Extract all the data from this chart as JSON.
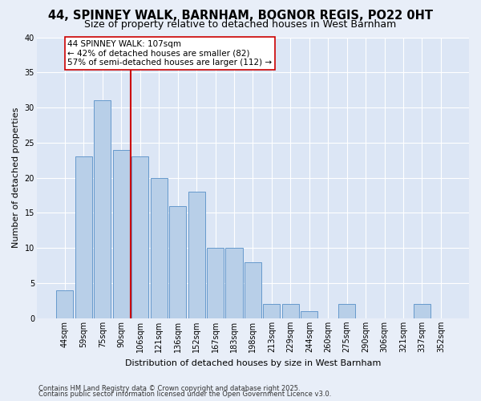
{
  "title1": "44, SPINNEY WALK, BARNHAM, BOGNOR REGIS, PO22 0HT",
  "title2": "Size of property relative to detached houses in West Barnham",
  "xlabel": "Distribution of detached houses by size in West Barnham",
  "ylabel": "Number of detached properties",
  "categories": [
    "44sqm",
    "59sqm",
    "75sqm",
    "90sqm",
    "106sqm",
    "121sqm",
    "136sqm",
    "152sqm",
    "167sqm",
    "183sqm",
    "198sqm",
    "213sqm",
    "229sqm",
    "244sqm",
    "260sqm",
    "275sqm",
    "290sqm",
    "306sqm",
    "321sqm",
    "337sqm",
    "352sqm"
  ],
  "values": [
    4,
    23,
    31,
    24,
    23,
    20,
    16,
    18,
    10,
    10,
    8,
    2,
    2,
    1,
    0,
    2,
    0,
    0,
    0,
    2,
    0
  ],
  "bar_color": "#b8cfe8",
  "bar_edge_color": "#6699cc",
  "vline_color": "#cc0000",
  "vline_x_idx": 4,
  "annotation_text": "44 SPINNEY WALK: 107sqm\n← 42% of detached houses are smaller (82)\n57% of semi-detached houses are larger (112) →",
  "annotation_box_color": "#ffffff",
  "annotation_box_edge": "#cc0000",
  "bg_color": "#e8eef8",
  "plot_bg_color": "#dce6f5",
  "grid_color": "#ffffff",
  "footer1": "Contains HM Land Registry data © Crown copyright and database right 2025.",
  "footer2": "Contains public sector information licensed under the Open Government Licence v3.0.",
  "ylim": [
    0,
    40
  ],
  "yticks": [
    0,
    5,
    10,
    15,
    20,
    25,
    30,
    35,
    40
  ],
  "title1_fontsize": 10.5,
  "title2_fontsize": 9,
  "tick_fontsize": 7,
  "label_fontsize": 8,
  "footer_fontsize": 6,
  "annotation_fontsize": 7.5
}
